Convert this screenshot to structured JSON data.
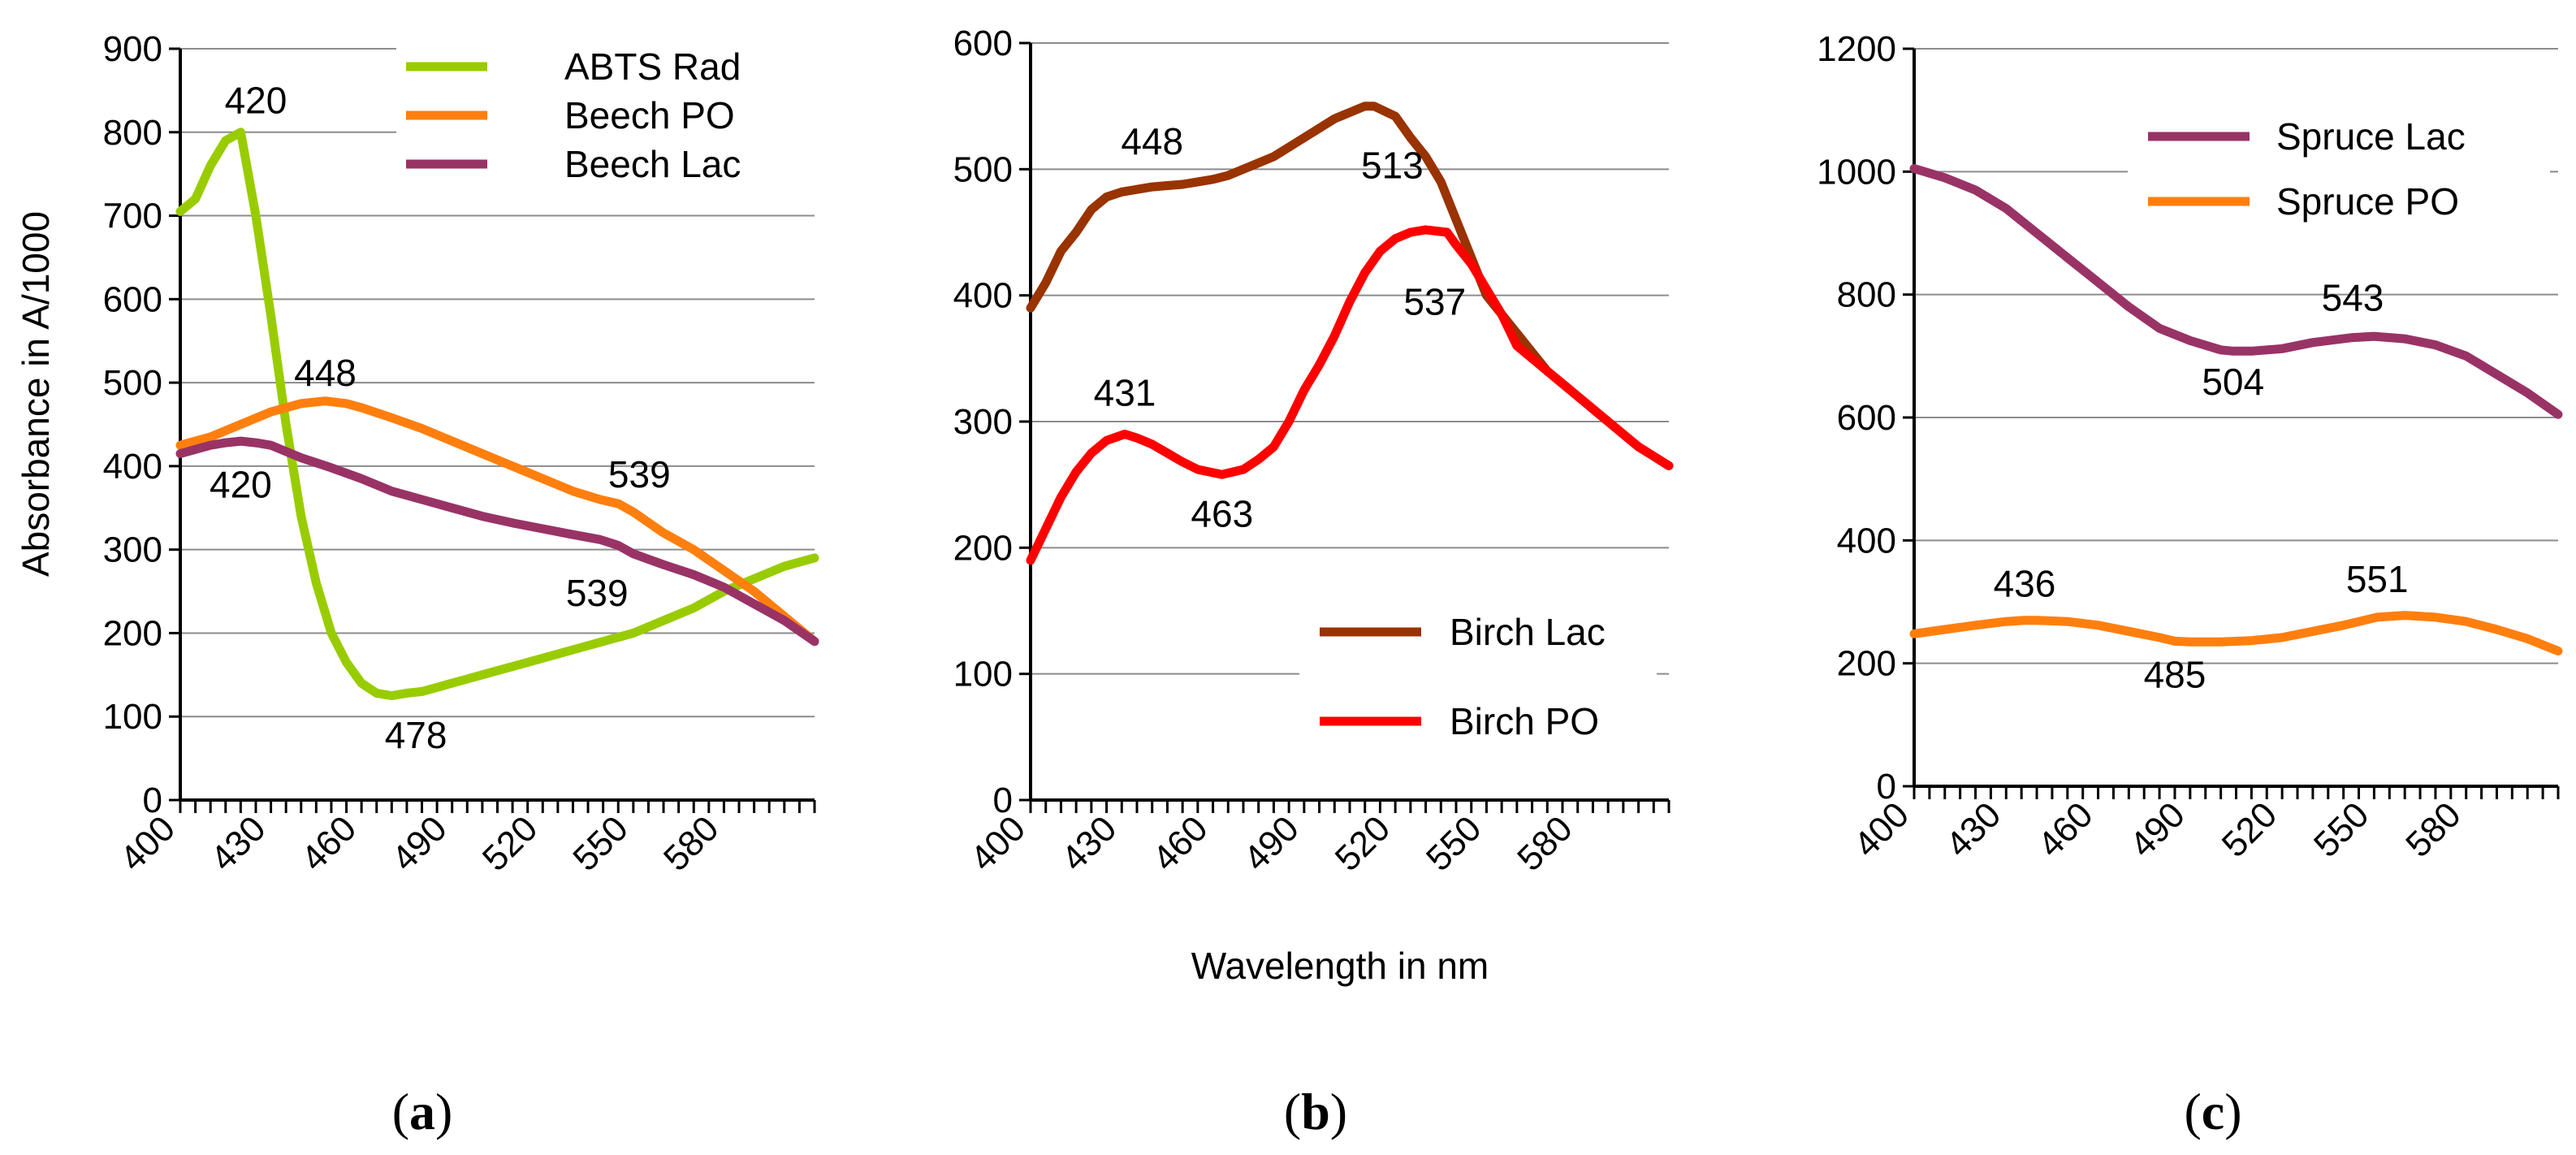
{
  "figure": {
    "ylabel": "Absorbance in A/1000",
    "xlabel": "Wavelength in nm"
  },
  "chart_data": [
    {
      "type": "line",
      "panel": "a",
      "caption": "(a)",
      "xlim": [
        400,
        610
      ],
      "ylim": [
        0,
        900
      ],
      "yticks": [
        0,
        100,
        200,
        300,
        400,
        500,
        600,
        700,
        800,
        900
      ],
      "xticks": [
        400,
        430,
        460,
        490,
        520,
        550,
        580
      ],
      "legend": "top-right",
      "series": [
        {
          "name": "ABTS Rad",
          "color": "#99cc00",
          "x": [
            400,
            405,
            410,
            415,
            420,
            425,
            430,
            435,
            440,
            445,
            450,
            455,
            460,
            465,
            470,
            475,
            480,
            485,
            490,
            495,
            500,
            510,
            520,
            530,
            540,
            550,
            560,
            570,
            580,
            590,
            600,
            610
          ],
          "y": [
            705,
            720,
            760,
            790,
            800,
            700,
            580,
            450,
            340,
            260,
            200,
            165,
            140,
            128,
            125,
            128,
            130,
            135,
            140,
            145,
            150,
            160,
            170,
            180,
            190,
            200,
            215,
            230,
            250,
            265,
            280,
            290
          ]
        },
        {
          "name": "Beech PO",
          "color": "#ff7f0e",
          "x": [
            400,
            410,
            420,
            430,
            440,
            448,
            455,
            460,
            470,
            480,
            490,
            500,
            510,
            520,
            530,
            539,
            545,
            550,
            560,
            570,
            580,
            590,
            600,
            610
          ],
          "y": [
            425,
            435,
            450,
            465,
            475,
            478,
            475,
            470,
            458,
            445,
            430,
            415,
            400,
            385,
            370,
            360,
            355,
            345,
            320,
            300,
            275,
            250,
            220,
            190
          ]
        },
        {
          "name": "Beech Lac",
          "color": "#993366",
          "x": [
            400,
            405,
            410,
            415,
            420,
            425,
            430,
            440,
            450,
            460,
            470,
            480,
            490,
            500,
            510,
            520,
            530,
            539,
            545,
            550,
            560,
            570,
            580,
            590,
            600,
            610
          ],
          "y": [
            415,
            420,
            425,
            428,
            430,
            428,
            425,
            410,
            398,
            385,
            370,
            360,
            350,
            340,
            332,
            325,
            318,
            312,
            305,
            295,
            282,
            270,
            255,
            235,
            215,
            190
          ]
        }
      ],
      "annotations": [
        {
          "text": "420",
          "x": 425,
          "y": 838
        },
        {
          "text": "448",
          "x": 448,
          "y": 512
        },
        {
          "text": "420",
          "x": 420,
          "y": 378
        },
        {
          "text": "539",
          "x": 552,
          "y": 390
        },
        {
          "text": "539",
          "x": 538,
          "y": 248
        },
        {
          "text": "478",
          "x": 478,
          "y": 78
        }
      ]
    },
    {
      "type": "line",
      "panel": "b",
      "caption": "(b)",
      "xlim": [
        400,
        610
      ],
      "ylim": [
        0,
        600
      ],
      "yticks": [
        0,
        100,
        200,
        300,
        400,
        500,
        600
      ],
      "xticks": [
        400,
        430,
        460,
        490,
        520,
        550,
        580
      ],
      "legend": "bottom-right",
      "series": [
        {
          "name": "Birch Lac",
          "color": "#993300",
          "x": [
            400,
            405,
            410,
            415,
            420,
            425,
            430,
            435,
            440,
            445,
            450,
            455,
            460,
            465,
            470,
            480,
            490,
            500,
            505,
            510,
            513,
            520,
            525,
            530,
            535,
            540,
            545,
            550,
            560,
            570,
            580,
            590,
            600,
            610
          ],
          "y": [
            390,
            410,
            435,
            450,
            468,
            478,
            482,
            484,
            486,
            487,
            488,
            490,
            492,
            495,
            500,
            510,
            525,
            540,
            545,
            550,
            550,
            542,
            525,
            510,
            490,
            460,
            430,
            400,
            370,
            340,
            320,
            300,
            280,
            265
          ]
        },
        {
          "name": "Birch PO",
          "color": "#ff0000",
          "x": [
            400,
            405,
            410,
            415,
            420,
            425,
            431,
            435,
            440,
            445,
            450,
            455,
            463,
            470,
            475,
            480,
            485,
            490,
            495,
            500,
            505,
            510,
            515,
            520,
            525,
            530,
            537,
            540,
            545,
            550,
            555,
            560,
            570,
            580,
            590,
            600,
            610
          ],
          "y": [
            190,
            215,
            240,
            260,
            275,
            285,
            290,
            287,
            282,
            275,
            268,
            262,
            258,
            262,
            270,
            280,
            300,
            325,
            345,
            368,
            395,
            418,
            435,
            445,
            450,
            452,
            450,
            440,
            425,
            405,
            385,
            360,
            340,
            320,
            300,
            280,
            265
          ]
        }
      ],
      "annotations": [
        {
          "text": "448",
          "x": 440,
          "y": 522
        },
        {
          "text": "513",
          "x": 519,
          "y": 503
        },
        {
          "text": "431",
          "x": 431,
          "y": 323
        },
        {
          "text": "537",
          "x": 533,
          "y": 395
        },
        {
          "text": "463",
          "x": 463,
          "y": 227
        }
      ]
    },
    {
      "type": "line",
      "panel": "c",
      "caption": "(c)",
      "xlim": [
        400,
        610
      ],
      "ylim": [
        0,
        1200
      ],
      "yticks": [
        0,
        200,
        400,
        600,
        800,
        1000,
        1200
      ],
      "xticks": [
        400,
        430,
        460,
        490,
        520,
        550,
        580
      ],
      "legend": "top-right",
      "series": [
        {
          "name": "Spruce Lac",
          "color": "#993366",
          "x": [
            400,
            410,
            420,
            430,
            440,
            450,
            460,
            470,
            480,
            490,
            500,
            504,
            510,
            520,
            530,
            543,
            550,
            560,
            570,
            580,
            590,
            600,
            610
          ],
          "y": [
            1005,
            990,
            970,
            940,
            900,
            860,
            820,
            780,
            745,
            725,
            710,
            708,
            708,
            712,
            722,
            730,
            732,
            728,
            718,
            700,
            670,
            640,
            605
          ]
        },
        {
          "name": "Spruce PO",
          "color": "#ff7f0e",
          "x": [
            400,
            410,
            420,
            430,
            436,
            440,
            450,
            460,
            470,
            480,
            485,
            490,
            500,
            510,
            520,
            530,
            540,
            551,
            560,
            570,
            580,
            590,
            600,
            610
          ],
          "y": [
            248,
            255,
            262,
            268,
            270,
            270,
            268,
            262,
            252,
            242,
            236,
            235,
            235,
            237,
            242,
            252,
            262,
            275,
            278,
            275,
            268,
            255,
            240,
            220
          ]
        }
      ],
      "annotations": [
        {
          "text": "543",
          "x": 543,
          "y": 795
        },
        {
          "text": "504",
          "x": 504,
          "y": 658
        },
        {
          "text": "436",
          "x": 436,
          "y": 330
        },
        {
          "text": "551",
          "x": 551,
          "y": 337
        },
        {
          "text": "485",
          "x": 485,
          "y": 182
        }
      ]
    }
  ]
}
